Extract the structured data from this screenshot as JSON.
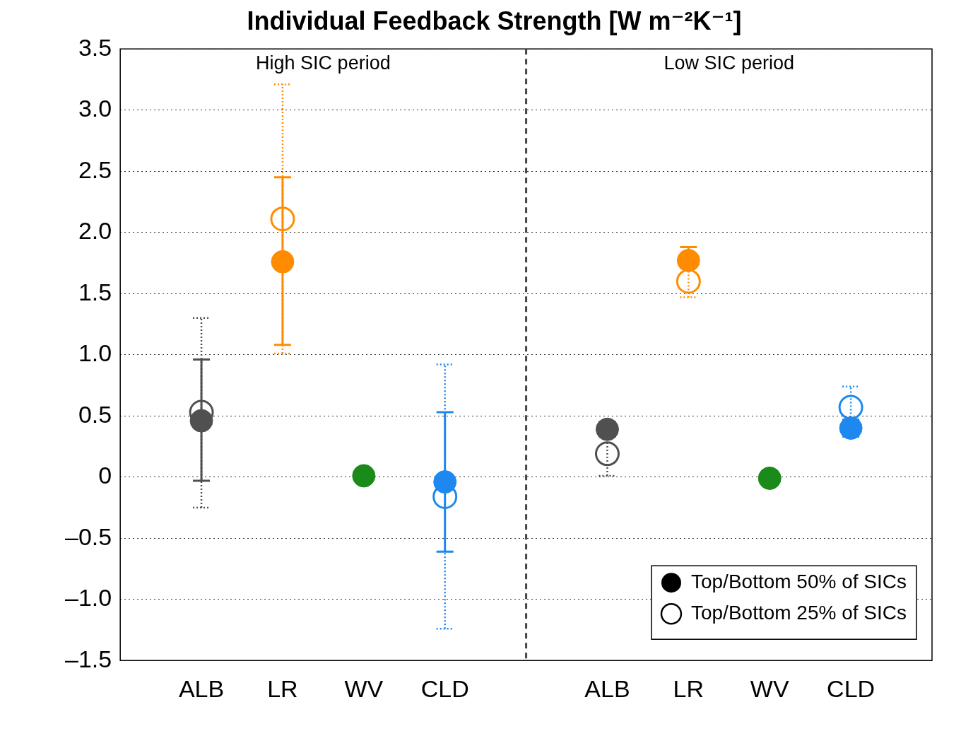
{
  "chart_data": {
    "type": "scatter",
    "title": "Individual Feedback Strength [W m⁻²K⁻¹]",
    "annotations": [
      "High SIC period",
      "Low SIC period"
    ],
    "categories": [
      null,
      "ALB",
      "LR",
      "WV",
      "CLD",
      null,
      "ALB",
      "LR",
      "WV",
      "CLD",
      null
    ],
    "series": [
      {
        "name": "Top/Bottom 50% of SICs",
        "marker": "circle",
        "line_style": "solid",
        "colors": [
          null,
          "#505050",
          "#ff8c00",
          "#1a8a1a",
          "#1e88f0",
          null,
          "#505050",
          "#ff8c00",
          "#1a8a1a",
          "#1e88f0",
          null
        ],
        "values": [
          null,
          0.46,
          1.76,
          0.01,
          -0.04,
          null,
          0.39,
          1.77,
          -0.01,
          0.4,
          null
        ],
        "error_low": [
          null,
          -0.03,
          1.08,
          null,
          -0.61,
          null,
          0.33,
          1.72,
          null,
          0.33,
          null
        ],
        "error_high": [
          null,
          0.96,
          2.45,
          null,
          0.53,
          null,
          0.45,
          1.88,
          null,
          0.47,
          null
        ]
      },
      {
        "name": "Top/Bottom 25% of SICs",
        "marker": "open_circle",
        "line_style": "dotted",
        "colors": [
          null,
          "#505050",
          "#ff8c00",
          null,
          "#1e88f0",
          null,
          "#505050",
          "#ff8c00",
          null,
          "#1e88f0",
          null
        ],
        "values": [
          null,
          0.53,
          2.11,
          null,
          -0.16,
          null,
          0.19,
          1.6,
          null,
          0.57,
          null
        ],
        "error_low": [
          null,
          -0.25,
          1.01,
          null,
          -1.24,
          null,
          0.01,
          1.47,
          null,
          0.4,
          null
        ],
        "error_high": [
          null,
          1.3,
          3.21,
          null,
          0.92,
          null,
          0.37,
          1.73,
          null,
          0.74,
          null
        ]
      }
    ],
    "ylim": [
      -1.5,
      3.5
    ],
    "yticks": [
      {
        "value": -1.5,
        "label": "–1.5"
      },
      {
        "value": -1.0,
        "label": "–1.0"
      },
      {
        "value": -0.5,
        "label": "–0.5"
      },
      0,
      0.5,
      {
        "value": 1.0,
        "label": "1.0"
      },
      1.5,
      {
        "value": 2.0,
        "label": "2.0"
      },
      2.5,
      {
        "value": 3.0,
        "label": "3.0"
      },
      3.5
    ],
    "grid": true,
    "legend": "lower right"
  }
}
